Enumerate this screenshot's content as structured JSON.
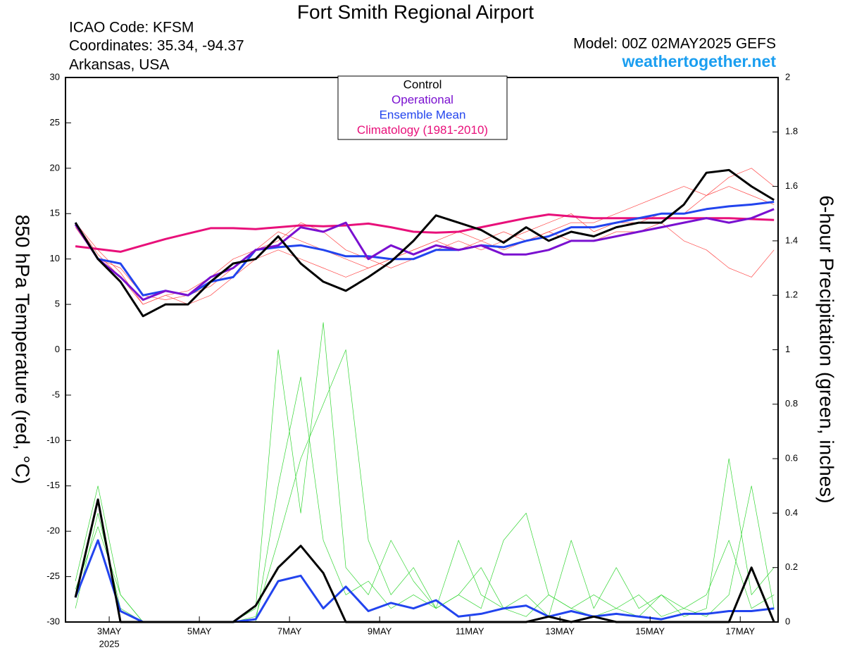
{
  "chart_data": {
    "type": "line",
    "title": "Fort Smith Regional Airport",
    "info_lines": [
      "ICAO Code: KFSM",
      "Coordinates: 35.34, -94.37",
      "Arkansas, USA"
    ],
    "model": "Model: 00Z 02MAY2025 GEFS",
    "source": "weathertogether.net",
    "y_label": "850 hPa Temperature (red, °C)",
    "y2_label": "6-hour Precipitation (green, inches)",
    "year_label": "2025",
    "x": [
      2.25,
      2.75,
      3.25,
      3.75,
      4.25,
      4.75,
      5.25,
      5.75,
      6.25,
      6.75,
      7.25,
      7.75,
      8.25,
      8.75,
      9.25,
      9.75,
      10.25,
      10.75,
      11.25,
      11.75,
      12.25,
      12.75,
      13.25,
      13.75,
      14.25,
      14.75,
      15.25,
      15.75,
      16.25,
      16.75,
      17.25,
      17.75
    ],
    "xlim": [
      2.03,
      17.84
    ],
    "xticks": [
      {
        "value": 3,
        "label": "3MAY"
      },
      {
        "value": 5,
        "label": "5MAY"
      },
      {
        "value": 7,
        "label": "7MAY"
      },
      {
        "value": 9,
        "label": "9MAY"
      },
      {
        "value": 11,
        "label": "11MAY"
      },
      {
        "value": 13,
        "label": "13MAY"
      },
      {
        "value": 15,
        "label": "15MAY"
      },
      {
        "value": 17,
        "label": "17MAY"
      }
    ],
    "ylim": [
      -30,
      30
    ],
    "yticks": [
      30,
      25,
      20,
      15,
      10,
      5,
      0,
      -5,
      -10,
      -15,
      -20,
      -25,
      -30
    ],
    "y2lim": [
      0,
      2
    ],
    "y2ticks": [
      0,
      0.2,
      0.4,
      0.6,
      0.8,
      1,
      1.2,
      1.4,
      1.6,
      1.8,
      2
    ],
    "series": [
      {
        "color": "#ff4a4a",
        "width": 0.7,
        "values": [
          14,
          10.5,
          8,
          5,
          6,
          6.5,
          8,
          10,
          11,
          13,
          12,
          11,
          10,
          9,
          10,
          11,
          12,
          11,
          12,
          13,
          12,
          13,
          14,
          14,
          15,
          16,
          17,
          18,
          17,
          18,
          17,
          16
        ]
      },
      {
        "color": "#ff4a4a",
        "width": 0.7,
        "values": [
          13.5,
          10,
          9,
          6,
          5.5,
          6,
          7,
          9,
          11,
          12,
          14,
          13,
          11,
          10,
          9,
          10,
          11,
          12,
          11,
          12,
          13,
          14,
          15,
          13,
          14,
          14,
          15,
          15,
          17,
          19,
          20,
          18
        ]
      },
      {
        "color": "#ff4a4a",
        "width": 0.7,
        "values": [
          14,
          11,
          8.5,
          5,
          6,
          5,
          6,
          8,
          10,
          11,
          10,
          9,
          8,
          9,
          10,
          11,
          12,
          13,
          12,
          11,
          12,
          13,
          12,
          12,
          13,
          13,
          14,
          12,
          11,
          9,
          8,
          11
        ]
      },
      {
        "color": "#33d633",
        "width": 0.7,
        "axis": "y2",
        "values": [
          0.12,
          0.35,
          0.1,
          0,
          0,
          0,
          0,
          0,
          0,
          0.5,
          0.9,
          0.3,
          0.1,
          0.15,
          0.05,
          0.1,
          0.05,
          0.3,
          0.1,
          0.05,
          0.02,
          0.1,
          0.05,
          0.02,
          0.05,
          0.1,
          0.02,
          0.05,
          0.1,
          0.3,
          0.05,
          0.1
        ]
      },
      {
        "color": "#33d633",
        "width": 0.7,
        "axis": "y2",
        "values": [
          0.05,
          0.4,
          0.05,
          0,
          0,
          0,
          0,
          0,
          0.02,
          0.3,
          0.6,
          0.8,
          1.0,
          0.3,
          0.1,
          0.2,
          0.05,
          0.1,
          0.05,
          0.3,
          0.4,
          0.1,
          0.05,
          0.1,
          0.05,
          0.02,
          0.1,
          0.05,
          0.02,
          0.1,
          0.5,
          0.05
        ]
      },
      {
        "color": "#33d633",
        "width": 0.7,
        "axis": "y2",
        "values": [
          0.15,
          0.5,
          0.1,
          0,
          0,
          0,
          0,
          0,
          0.05,
          1.0,
          0.4,
          1.1,
          0.2,
          0.1,
          0.3,
          0.15,
          0.05,
          0.1,
          0.2,
          0.05,
          0.1,
          0.02,
          0.3,
          0.05,
          0.2,
          0.05,
          0.1,
          0.02,
          0.05,
          0.6,
          0.1,
          0.2
        ]
      },
      {
        "name": "Climatology (1981-2010)",
        "color": "#e8107a",
        "width": 3,
        "values": [
          11.4,
          11.1,
          10.8,
          11.5,
          12.2,
          12.8,
          13.4,
          13.4,
          13.3,
          13.5,
          13.7,
          13.6,
          13.7,
          13.9,
          13.5,
          13,
          12.9,
          13,
          13.5,
          14,
          14.5,
          14.9,
          14.7,
          14.5,
          14.5,
          14.5,
          14.5,
          14.5,
          14.5,
          14.5,
          14.4,
          14.3
        ]
      },
      {
        "name": "Ensemble Mean",
        "color": "#2244ee",
        "width": 3,
        "values": [
          14,
          10,
          9.5,
          6,
          6.5,
          6,
          7.5,
          8,
          11,
          11.3,
          11.5,
          11,
          10.3,
          10.3,
          10,
          10,
          11,
          11,
          11.5,
          11.3,
          12,
          12.5,
          13.5,
          13.5,
          14,
          14.5,
          15,
          15,
          15.5,
          15.8,
          16,
          16.3
        ]
      },
      {
        "name": "Operational",
        "color": "#7a10d0",
        "width": 3,
        "values": [
          13.8,
          10,
          8,
          5.5,
          6.5,
          6,
          8,
          9,
          11,
          11.5,
          13.5,
          13,
          14,
          10,
          11.5,
          10.5,
          11.5,
          11,
          11.5,
          10.5,
          10.5,
          11,
          12,
          12,
          12.5,
          13,
          13.5,
          14,
          14.5,
          14,
          14.5,
          15.5
        ]
      },
      {
        "name": "Control",
        "color": "#000000",
        "width": 3,
        "values": [
          14,
          10,
          7.5,
          3.7,
          5,
          5,
          7.5,
          9.5,
          10,
          12.5,
          9.5,
          7.5,
          6.5,
          8,
          9.7,
          12,
          14.8,
          14,
          13.2,
          11.8,
          13.5,
          12,
          13,
          12.5,
          13.5,
          14,
          14,
          16,
          19.5,
          19.8,
          18,
          16.5
        ]
      },
      {
        "color": "#2244ee",
        "width": 3,
        "axis": "y2",
        "values": [
          0.09,
          0.3,
          0.04,
          0,
          0,
          0,
          0,
          0,
          0.01,
          0.15,
          0.17,
          0.05,
          0.13,
          0.04,
          0.07,
          0.05,
          0.08,
          0.02,
          0.03,
          0.05,
          0.06,
          0.02,
          0.04,
          0.02,
          0.03,
          0.02,
          0.01,
          0.03,
          0.03,
          0.04,
          0.04,
          0.05
        ]
      },
      {
        "color": "#000000",
        "width": 3,
        "axis": "y2",
        "values": [
          0.09,
          0.45,
          0,
          0,
          0,
          0,
          0,
          0,
          0.06,
          0.2,
          0.28,
          0.18,
          0,
          0,
          0,
          0,
          0,
          0,
          0,
          0,
          0,
          0.02,
          0,
          0.02,
          0,
          0,
          0,
          0,
          0,
          0,
          0.2,
          0
        ]
      }
    ]
  }
}
